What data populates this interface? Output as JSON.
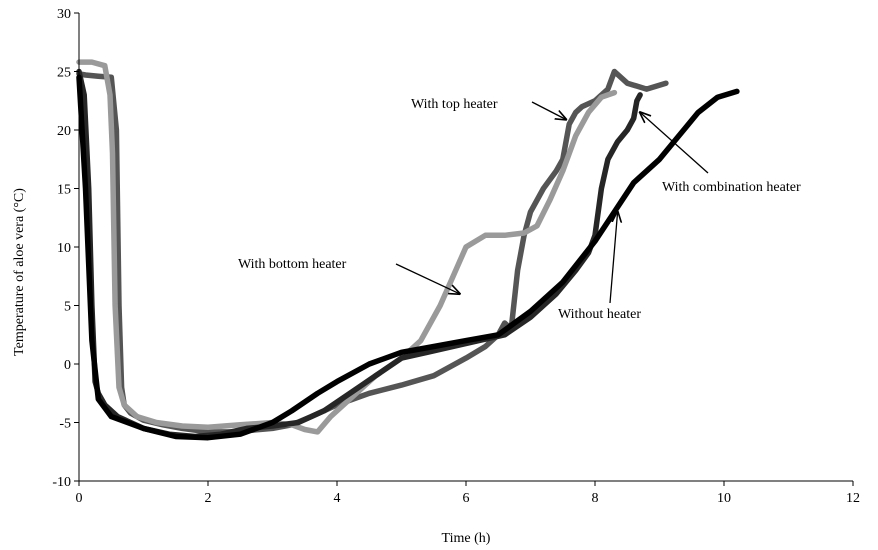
{
  "chart_data": {
    "type": "line",
    "title": "",
    "xlabel": "Time (h)",
    "ylabel": "Temperature of aloe vera (°C)",
    "xlim": [
      0,
      12
    ],
    "ylim": [
      -10,
      30
    ],
    "xticks": [
      0,
      2,
      4,
      6,
      8,
      10,
      12
    ],
    "yticks": [
      -10,
      -5,
      0,
      5,
      10,
      15,
      20,
      25,
      30
    ],
    "grid": false,
    "legend": "none",
    "series": [
      {
        "name": "With top heater",
        "color": "#555555",
        "x": [
          0.0,
          0.1,
          0.3,
          0.5,
          0.58,
          0.62,
          0.66,
          0.7,
          0.8,
          1.0,
          1.3,
          1.6,
          2.0,
          2.4,
          2.8,
          3.0,
          3.3,
          3.6,
          4.0,
          4.5,
          5.0,
          5.5,
          6.0,
          6.3,
          6.5,
          6.6,
          6.7,
          6.8,
          6.9,
          7.0,
          7.2,
          7.4,
          7.5,
          7.6,
          7.7,
          7.8,
          8.0,
          8.2,
          8.3,
          8.5,
          8.8,
          9.1
        ],
        "y": [
          24.8,
          24.7,
          24.6,
          24.5,
          20.0,
          5.0,
          -2.0,
          -3.5,
          -4.2,
          -4.8,
          -5.2,
          -5.5,
          -5.8,
          -5.8,
          -5.6,
          -5.5,
          -5.2,
          -4.5,
          -3.5,
          -2.5,
          -1.8,
          -1.0,
          0.5,
          1.5,
          2.5,
          3.5,
          3.0,
          8.0,
          11.0,
          13.0,
          15.0,
          16.5,
          17.5,
          20.5,
          21.5,
          22.0,
          22.5,
          23.5,
          25.0,
          24.0,
          23.5,
          24.0
        ]
      },
      {
        "name": "With bottom heater",
        "color": "#9a9a9a",
        "x": [
          0.0,
          0.2,
          0.4,
          0.48,
          0.52,
          0.56,
          0.62,
          0.7,
          0.9,
          1.2,
          1.6,
          2.0,
          2.5,
          3.0,
          3.3,
          3.5,
          3.7,
          3.9,
          4.2,
          4.6,
          5.0,
          5.3,
          5.6,
          5.8,
          6.0,
          6.3,
          6.6,
          6.9,
          7.1,
          7.3,
          7.5,
          7.7,
          7.9,
          8.1,
          8.3
        ],
        "y": [
          25.8,
          25.8,
          25.5,
          23.0,
          18.0,
          5.0,
          -2.0,
          -3.5,
          -4.5,
          -5.0,
          -5.3,
          -5.4,
          -5.2,
          -5.0,
          -5.2,
          -5.6,
          -5.8,
          -4.5,
          -3.0,
          -1.0,
          0.5,
          2.0,
          5.0,
          7.5,
          10.0,
          11.0,
          11.0,
          11.2,
          11.8,
          14.0,
          16.5,
          19.5,
          21.5,
          22.8,
          23.2
        ]
      },
      {
        "name": "With combination heater",
        "color": "#262626",
        "x": [
          0.0,
          0.08,
          0.15,
          0.2,
          0.25,
          0.3,
          0.4,
          0.6,
          1.0,
          1.4,
          1.8,
          2.2,
          2.6,
          3.0,
          3.4,
          3.8,
          4.2,
          4.6,
          5.0,
          5.4,
          5.8,
          6.2,
          6.6,
          7.0,
          7.4,
          7.7,
          7.9,
          8.0,
          8.05,
          8.1,
          8.2,
          8.35,
          8.5,
          8.6,
          8.65,
          8.7
        ],
        "y": [
          25.0,
          23.0,
          15.0,
          5.0,
          -1.5,
          -2.5,
          -3.5,
          -4.5,
          -5.5,
          -6.0,
          -6.2,
          -6.0,
          -5.5,
          -5.3,
          -5.0,
          -4.0,
          -2.5,
          -1.0,
          0.5,
          1.0,
          1.5,
          2.0,
          2.5,
          4.0,
          6.0,
          8.0,
          9.5,
          11.0,
          13.0,
          15.0,
          17.5,
          19.0,
          20.0,
          21.0,
          22.5,
          23.0
        ]
      },
      {
        "name": "Without heater",
        "color": "#000000",
        "x": [
          0.0,
          0.1,
          0.2,
          0.3,
          0.5,
          1.0,
          1.5,
          2.0,
          2.5,
          3.0,
          3.3,
          3.7,
          4.0,
          4.5,
          5.0,
          5.5,
          6.0,
          6.5,
          7.0,
          7.5,
          8.0,
          8.3,
          8.6,
          9.0,
          9.3,
          9.6,
          9.9,
          10.2
        ],
        "y": [
          24.5,
          15.0,
          2.0,
          -3.0,
          -4.5,
          -5.5,
          -6.2,
          -6.3,
          -6.0,
          -5.0,
          -4.0,
          -2.5,
          -1.5,
          0.0,
          1.0,
          1.5,
          2.0,
          2.5,
          4.5,
          7.0,
          10.5,
          13.0,
          15.5,
          17.5,
          19.5,
          21.5,
          22.8,
          23.3
        ]
      }
    ],
    "annotations": [
      {
        "text": "With top heater",
        "target": [
          7.55,
          20.9
        ]
      },
      {
        "text": "With bottom heater",
        "target": [
          5.9,
          6.0
        ]
      },
      {
        "text": "With combination heater",
        "target": [
          8.7,
          21.5
        ]
      },
      {
        "text": "Without heater",
        "target": [
          8.35,
          13.0
        ]
      }
    ]
  }
}
